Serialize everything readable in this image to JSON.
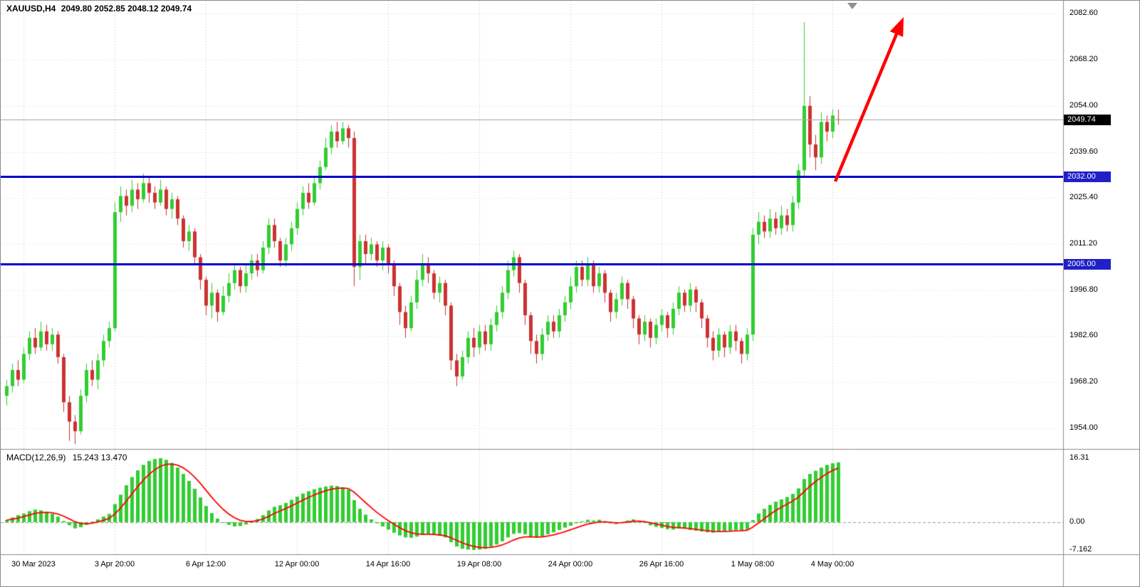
{
  "header": {
    "symbol_timeframe": "XAUUSD,H4",
    "ohlc": "2049.80 2052.85 2048.12 2049.74"
  },
  "colors": {
    "bull": "#32CD32",
    "bear": "#CC3232",
    "level": "#0000C8",
    "level_badge": "#2020C8",
    "current_badge_bg": "#000000",
    "macd_hist": "#32CD32",
    "macd_signal": "#FF0000",
    "arrow": "#FF0000",
    "grid_v": "#c4c4cd",
    "grid_h": "#dadae0",
    "separator": "#8c8c8c",
    "price_line": "#a8a8a8",
    "text": "#000000"
  },
  "chart_data": [
    {
      "type": "candlestick",
      "title": "XAUUSD H4 price panel",
      "ylim": [
        1947.5,
        2086.4
      ],
      "y_ticks": [
        2082.6,
        2068.2,
        2054.0,
        2039.6,
        2025.4,
        2011.2,
        1996.8,
        1982.6,
        1968.2,
        1954.0
      ],
      "x_ticks": [
        {
          "index": 3,
          "label": "30 Mar 2023"
        },
        {
          "index": 19,
          "label": "3 Apr 20:00"
        },
        {
          "index": 35,
          "label": "6 Apr 12:00"
        },
        {
          "index": 51,
          "label": "12 Apr 00:00"
        },
        {
          "index": 67,
          "label": "14 Apr 16:00"
        },
        {
          "index": 83,
          "label": "19 Apr 08:00"
        },
        {
          "index": 99,
          "label": "24 Apr 00:00"
        },
        {
          "index": 115,
          "label": "26 Apr 16:00"
        },
        {
          "index": 131,
          "label": "1 May 08:00"
        },
        {
          "index": 145,
          "label": "4 May 00:00"
        }
      ],
      "price_line": {
        "value": 2049.74,
        "label": "2049.74"
      },
      "levels": [
        {
          "value": 2032.0,
          "label": "2032.00",
          "role": "resistance"
        },
        {
          "value": 2005.0,
          "label": "2005.00",
          "role": "support"
        }
      ],
      "arrow": {
        "from": {
          "index": 145.5,
          "price": 2030.5
        },
        "to": {
          "index": 157.5,
          "price": 2081.5
        }
      },
      "candles": [
        [
          1964,
          1969,
          1961,
          1967
        ],
        [
          1967,
          1974,
          1965,
          1972
        ],
        [
          1972,
          1975,
          1967,
          1969
        ],
        [
          1969,
          1979,
          1968,
          1977
        ],
        [
          1977,
          1984,
          1975,
          1982
        ],
        [
          1982,
          1985,
          1977,
          1979
        ],
        [
          1979,
          1987,
          1978,
          1984
        ],
        [
          1984,
          1986,
          1978,
          1980
        ],
        [
          1980,
          1985,
          1978,
          1983
        ],
        [
          1983,
          1984,
          1974,
          1976
        ],
        [
          1976,
          1977,
          1959,
          1962
        ],
        [
          1962,
          1964,
          1950,
          1956
        ],
        [
          1956,
          1958,
          1949,
          1953
        ],
        [
          1953,
          1966,
          1952,
          1964
        ],
        [
          1964,
          1974,
          1962,
          1972
        ],
        [
          1972,
          1975,
          1967,
          1969
        ],
        [
          1969,
          1977,
          1966,
          1975
        ],
        [
          1975,
          1983,
          1973,
          1981
        ],
        [
          1981,
          1987,
          1979,
          1985
        ],
        [
          1985,
          2024,
          1984,
          2021
        ],
        [
          2021,
          2029,
          2018,
          2026
        ],
        [
          2026,
          2028,
          2020,
          2023
        ],
        [
          2023,
          2031,
          2021,
          2028
        ],
        [
          2028,
          2030,
          2022,
          2025
        ],
        [
          2025,
          2033,
          2024,
          2030
        ],
        [
          2030,
          2032,
          2024,
          2027
        ],
        [
          2027,
          2029,
          2022,
          2024
        ],
        [
          2024,
          2031,
          2023,
          2028
        ],
        [
          2028,
          2029,
          2020,
          2022
        ],
        [
          2022,
          2027,
          2019,
          2025
        ],
        [
          2025,
          2026,
          2017,
          2019
        ],
        [
          2019,
          2020,
          2010,
          2012
        ],
        [
          2012,
          2017,
          2009,
          2015
        ],
        [
          2015,
          2016,
          2005,
          2007
        ],
        [
          2007,
          2008,
          1997,
          2000
        ],
        [
          2000,
          2001,
          1989,
          1992
        ],
        [
          1992,
          1999,
          1988,
          1996
        ],
        [
          1996,
          1997,
          1987,
          1990
        ],
        [
          1990,
          1998,
          1989,
          1995
        ],
        [
          1995,
          2002,
          1993,
          1999
        ],
        [
          1999,
          2005,
          1997,
          2003
        ],
        [
          2003,
          2004,
          1996,
          1998
        ],
        [
          1998,
          2005,
          1996,
          2002
        ],
        [
          2002,
          2008,
          2000,
          2006
        ],
        [
          2006,
          2008,
          2001,
          2003
        ],
        [
          2003,
          2012,
          2002,
          2010
        ],
        [
          2010,
          2019,
          2008,
          2017
        ],
        [
          2017,
          2019,
          2010,
          2012
        ],
        [
          2012,
          2013,
          2004,
          2006
        ],
        [
          2006,
          2013,
          2004,
          2011
        ],
        [
          2011,
          2018,
          2009,
          2016
        ],
        [
          2016,
          2024,
          2014,
          2022
        ],
        [
          2022,
          2029,
          2020,
          2027
        ],
        [
          2027,
          2030,
          2022,
          2024
        ],
        [
          2024,
          2032,
          2023,
          2030
        ],
        [
          2030,
          2037,
          2028,
          2035
        ],
        [
          2035,
          2044,
          2034,
          2041
        ],
        [
          2041,
          2048,
          2039,
          2046
        ],
        [
          2046,
          2049,
          2041,
          2043
        ],
        [
          2043,
          2049,
          2042,
          2047
        ],
        [
          2047,
          2048,
          2041,
          2044
        ],
        [
          2044,
          2046,
          1998,
          2004
        ],
        [
          2004,
          2014,
          2000,
          2012
        ],
        [
          2012,
          2014,
          2005,
          2008
        ],
        [
          2008,
          2013,
          2006,
          2011
        ],
        [
          2011,
          2012,
          2004,
          2006
        ],
        [
          2006,
          2012,
          2003,
          2010
        ],
        [
          2010,
          2011,
          2002,
          2005
        ],
        [
          2005,
          2006,
          1995,
          1998
        ],
        [
          1998,
          1999,
          1986,
          1990
        ],
        [
          1990,
          1992,
          1982,
          1985
        ],
        [
          1985,
          1995,
          1984,
          1993
        ],
        [
          1993,
          2003,
          1991,
          2000
        ],
        [
          2000,
          2008,
          1998,
          2005
        ],
        [
          2005,
          2007,
          1999,
          2002
        ],
        [
          2002,
          2003,
          1994,
          1996
        ],
        [
          1996,
          2001,
          1993,
          1999
        ],
        [
          1999,
          2000,
          1989,
          1992
        ],
        [
          1992,
          1993,
          1972,
          1975
        ],
        [
          1975,
          1977,
          1967,
          1970
        ],
        [
          1970,
          1978,
          1969,
          1976
        ],
        [
          1976,
          1984,
          1974,
          1982
        ],
        [
          1982,
          1985,
          1976,
          1979
        ],
        [
          1979,
          1986,
          1977,
          1984
        ],
        [
          1984,
          1986,
          1978,
          1980
        ],
        [
          1980,
          1988,
          1978,
          1986
        ],
        [
          1986,
          1992,
          1984,
          1990
        ],
        [
          1990,
          1998,
          1988,
          1996
        ],
        [
          1996,
          2006,
          1994,
          2003
        ],
        [
          2003,
          2009,
          2001,
          2007
        ],
        [
          2007,
          2008,
          1996,
          1999
        ],
        [
          1999,
          2000,
          1986,
          1989
        ],
        [
          1989,
          1990,
          1977,
          1981
        ],
        [
          1981,
          1983,
          1974,
          1977
        ],
        [
          1977,
          1985,
          1975,
          1983
        ],
        [
          1983,
          1989,
          1981,
          1987
        ],
        [
          1987,
          1989,
          1982,
          1984
        ],
        [
          1984,
          1991,
          1982,
          1989
        ],
        [
          1989,
          1995,
          1987,
          1993
        ],
        [
          1993,
          2001,
          1991,
          1998
        ],
        [
          1998,
          2006,
          1996,
          2004
        ],
        [
          2004,
          2006,
          1998,
          2000
        ],
        [
          2000,
          2007,
          1998,
          2005
        ],
        [
          2005,
          2006,
          1996,
          1998
        ],
        [
          1998,
          2004,
          1996,
          2002
        ],
        [
          2002,
          2003,
          1993,
          1996
        ],
        [
          1996,
          1997,
          1987,
          1990
        ],
        [
          1990,
          1996,
          1988,
          1994
        ],
        [
          1994,
          2001,
          1992,
          1999
        ],
        [
          1999,
          2000,
          1991,
          1994
        ],
        [
          1994,
          1995,
          1985,
          1988
        ],
        [
          1988,
          1989,
          1980,
          1983
        ],
        [
          1983,
          1989,
          1981,
          1987
        ],
        [
          1987,
          1988,
          1979,
          1982
        ],
        [
          1982,
          1988,
          1980,
          1986
        ],
        [
          1986,
          1991,
          1984,
          1989
        ],
        [
          1989,
          1990,
          1982,
          1985
        ],
        [
          1985,
          1993,
          1983,
          1991
        ],
        [
          1991,
          1998,
          1989,
          1996
        ],
        [
          1996,
          1997,
          1990,
          1992
        ],
        [
          1992,
          1999,
          1990,
          1997
        ],
        [
          1997,
          1998,
          1990,
          1993
        ],
        [
          1993,
          1994,
          1985,
          1988
        ],
        [
          1988,
          1989,
          1979,
          1982
        ],
        [
          1982,
          1984,
          1975,
          1978
        ],
        [
          1978,
          1985,
          1976,
          1983
        ],
        [
          1983,
          1984,
          1976,
          1979
        ],
        [
          1979,
          1986,
          1977,
          1984
        ],
        [
          1984,
          1986,
          1978,
          1981
        ],
        [
          1981,
          1982,
          1974,
          1977
        ],
        [
          1977,
          1985,
          1975,
          1983
        ],
        [
          1983,
          2016,
          1981,
          2014
        ],
        [
          2014,
          2021,
          2011,
          2018
        ],
        [
          2018,
          2020,
          2013,
          2015
        ],
        [
          2015,
          2022,
          2013,
          2019
        ],
        [
          2019,
          2021,
          2014,
          2016
        ],
        [
          2016,
          2023,
          2014,
          2020
        ],
        [
          2020,
          2022,
          2015,
          2017
        ],
        [
          2017,
          2026,
          2015,
          2024
        ],
        [
          2024,
          2036,
          2022,
          2034
        ],
        [
          2034,
          2080,
          2032,
          2054
        ],
        [
          2054,
          2057,
          2038,
          2042
        ],
        [
          2042,
          2045,
          2034,
          2038
        ],
        [
          2038,
          2052,
          2036,
          2049
        ],
        [
          2049,
          2051,
          2043,
          2046
        ],
        [
          2046,
          2053,
          2044,
          2051
        ],
        [
          2049.8,
          2052.85,
          2048.12,
          2049.74
        ]
      ]
    },
    {
      "type": "bar",
      "title": "MACD(12,26,9)",
      "values_label": "15.243 13.470",
      "ylim": [
        -8.2,
        18.3
      ],
      "signal_period": 9,
      "y_ticks": [
        {
          "value": 16.31,
          "label": "16.31"
        },
        {
          "value": 0,
          "label": "0.00"
        },
        {
          "value": -7.162,
          "label": "-7.162"
        }
      ],
      "histogram": [
        0.5,
        1.2,
        1.8,
        2.2,
        2.8,
        3.2,
        3.0,
        2.6,
        2.1,
        1.4,
        0.3,
        -0.8,
        -1.6,
        -1.3,
        -0.7,
        0.1,
        0.7,
        1.4,
        2.1,
        4.6,
        7.0,
        9.4,
        11.5,
        13.2,
        14.6,
        15.6,
        16.1,
        16.3,
        15.9,
        15.1,
        13.9,
        12.3,
        10.5,
        8.5,
        6.3,
        4.1,
        2.3,
        0.9,
        -0.1,
        -0.7,
        -1.1,
        -1.0,
        -0.6,
        0.1,
        0.8,
        1.8,
        3.0,
        3.9,
        4.3,
        4.9,
        5.7,
        6.5,
        7.3,
        7.9,
        8.4,
        8.8,
        9.1,
        9.3,
        9.2,
        8.9,
        8.3,
        5.6,
        3.4,
        1.9,
        0.7,
        -0.3,
        -1.1,
        -1.9,
        -2.7,
        -3.4,
        -3.9,
        -4.0,
        -3.7,
        -3.3,
        -3.1,
        -3.3,
        -3.5,
        -3.9,
        -5.1,
        -6.2,
        -6.8,
        -7.0,
        -7.1,
        -7.0,
        -6.8,
        -6.3,
        -5.7,
        -4.9,
        -3.9,
        -3.0,
        -2.8,
        -3.1,
        -3.7,
        -4.0,
        -3.6,
        -3.1,
        -2.6,
        -2.0,
        -1.4,
        -0.9,
        -0.3,
        0.2,
        0.6,
        0.4,
        0.6,
        0.2,
        -0.3,
        -0.5,
        -0.1,
        0.4,
        0.7,
        0.3,
        -0.2,
        -0.8,
        -1.2,
        -1.5,
        -1.8,
        -1.9,
        -1.6,
        -1.7,
        -2.0,
        -2.2,
        -2.4,
        -2.6,
        -2.7,
        -2.5,
        -2.4,
        -2.2,
        -2.0,
        -2.1,
        -1.8,
        0.5,
        2.2,
        3.4,
        4.4,
        5.2,
        5.8,
        6.4,
        7.2,
        8.6,
        11.0,
        12.3,
        13.1,
        13.9,
        14.6,
        15.0,
        15.243
      ]
    }
  ]
}
